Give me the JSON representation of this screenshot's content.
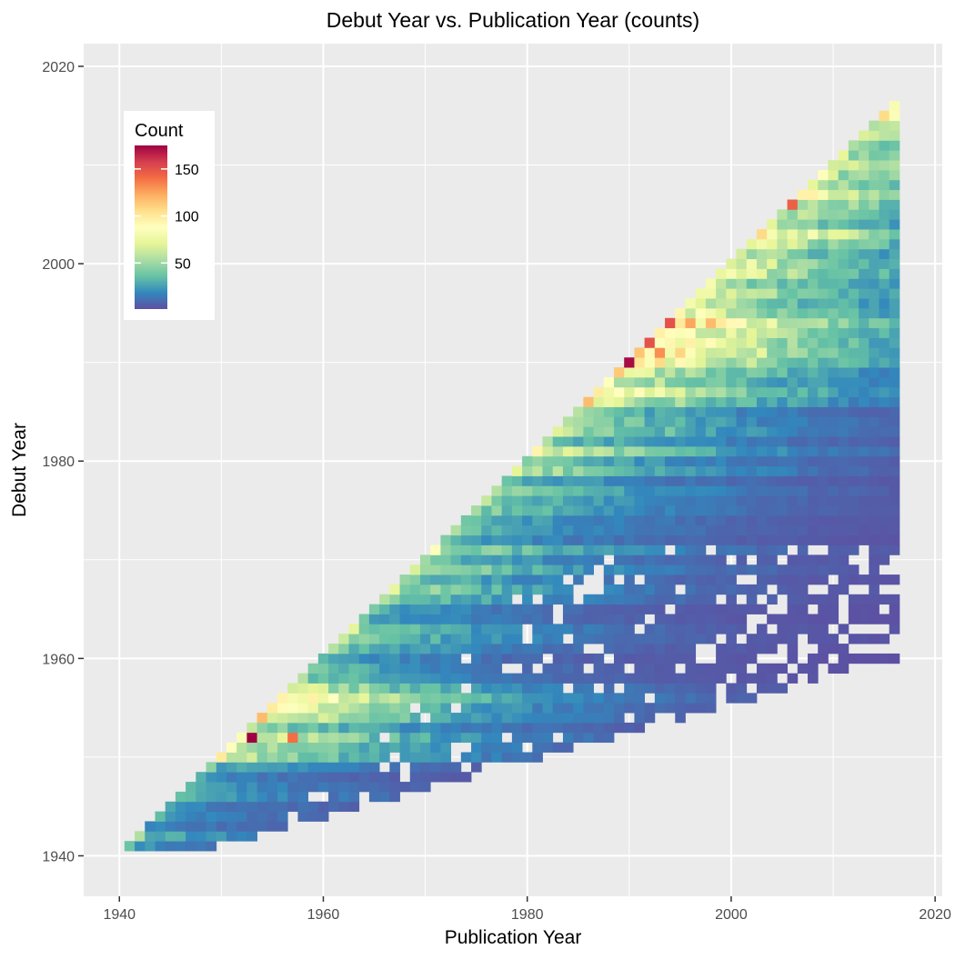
{
  "chart_data": {
    "type": "heatmap",
    "title": "Debut Year vs. Publication Year (counts)",
    "xlabel": "Publication Year",
    "ylabel": "Debut Year",
    "xlim": [
      1936.5,
      2020.7
    ],
    "ylim": [
      1935.9,
      2022.3
    ],
    "x_ticks": [
      1940,
      1960,
      1980,
      2000,
      2020
    ],
    "y_ticks": [
      1940,
      1960,
      1980,
      2000,
      2020
    ],
    "x_tick_labels": [
      "1940",
      "1960",
      "1980",
      "2000",
      "2020"
    ],
    "y_tick_labels": [
      "1940",
      "1960",
      "1980",
      "2000",
      "2020"
    ],
    "grid": true,
    "background_color": "#EBEBEB",
    "legend": {
      "title": "Count",
      "position": "top-left",
      "min": 1,
      "max": 175,
      "breaks": [
        50,
        100,
        150
      ],
      "break_labels": [
        "50",
        "100",
        "150"
      ],
      "palette": [
        "#5E4FA2",
        "#3288BD",
        "#66C2A5",
        "#ABDDA4",
        "#E6F598",
        "#FFFFBF",
        "#FEE08B",
        "#FDAE61",
        "#F46D43",
        "#D53E4F",
        "#9E0142"
      ]
    },
    "cells_description": "One cell per (publication year, debut year) pair with debut year <= publication year, publication years 1941-2016, debut years 1941-2016; counts estimated per row/column.",
    "x_range": [
      1941,
      2016
    ],
    "y_range": [
      1941,
      2016
    ],
    "peak_cells": [
      {
        "x": 1953,
        "y": 1952,
        "value": 175
      },
      {
        "x": 1990,
        "y": 1990,
        "value": 172
      },
      {
        "x": 1994,
        "y": 1994,
        "value": 150
      },
      {
        "x": 2006,
        "y": 2006,
        "value": 145
      },
      {
        "x": 1957,
        "y": 1952,
        "value": 140
      }
    ]
  }
}
